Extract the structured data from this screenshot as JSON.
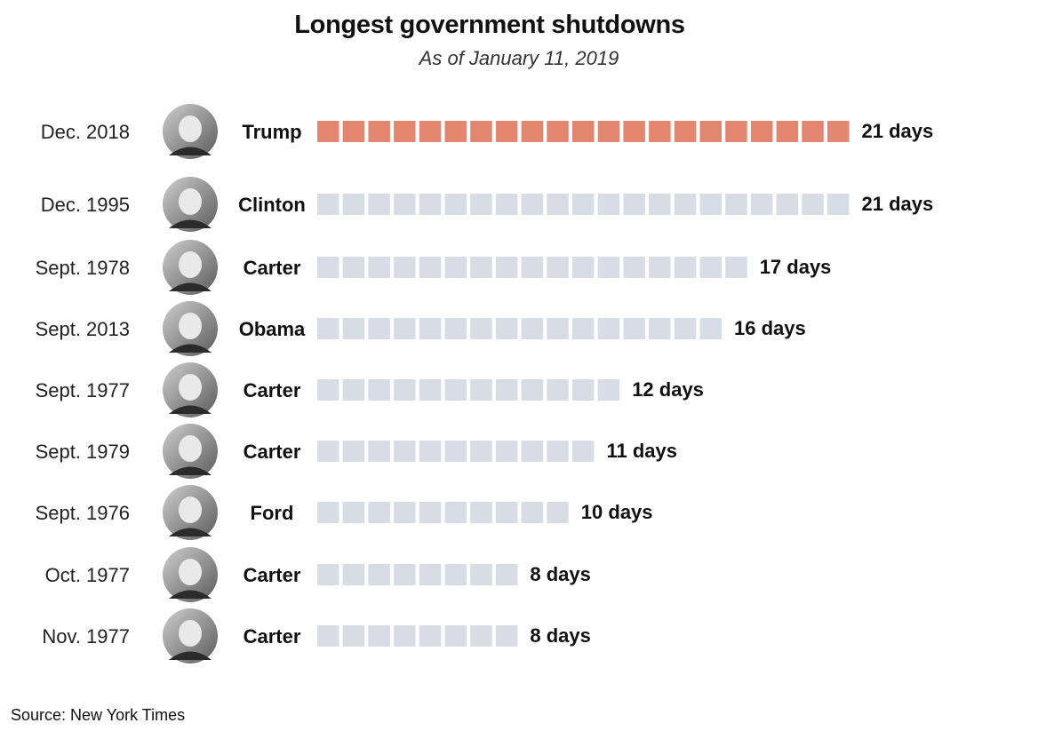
{
  "chart_data": {
    "type": "bar",
    "title": "Longest government shutdowns",
    "subtitle": "As of January 11, 2019",
    "unit": "days",
    "highlight_color": "#e38670",
    "base_color": "#d8dde5",
    "rows": [
      {
        "date": "Dec. 2018",
        "president": "Trump",
        "days": 21,
        "value_label": "21 days",
        "highlight": true
      },
      {
        "date": "Dec. 1995",
        "president": "Clinton",
        "days": 21,
        "value_label": "21 days",
        "highlight": false
      },
      {
        "date": "Sept. 1978",
        "president": "Carter",
        "days": 17,
        "value_label": "17 days",
        "highlight": false
      },
      {
        "date": "Sept. 2013",
        "president": "Obama",
        "days": 16,
        "value_label": "16 days",
        "highlight": false
      },
      {
        "date": "Sept. 1977",
        "president": "Carter",
        "days": 12,
        "value_label": "12 days",
        "highlight": false
      },
      {
        "date": "Sept. 1979",
        "president": "Carter",
        "days": 11,
        "value_label": "11 days",
        "highlight": false
      },
      {
        "date": "Sept. 1976",
        "president": "Ford",
        "days": 10,
        "value_label": "10 days",
        "highlight": false
      },
      {
        "date": "Oct. 1977",
        "president": "Carter",
        "days": 8,
        "value_label": "8 days",
        "highlight": false
      },
      {
        "date": "Nov. 1977",
        "president": "Carter",
        "days": 8,
        "value_label": "8 days",
        "highlight": false
      }
    ]
  },
  "source": "Source: New York Times"
}
